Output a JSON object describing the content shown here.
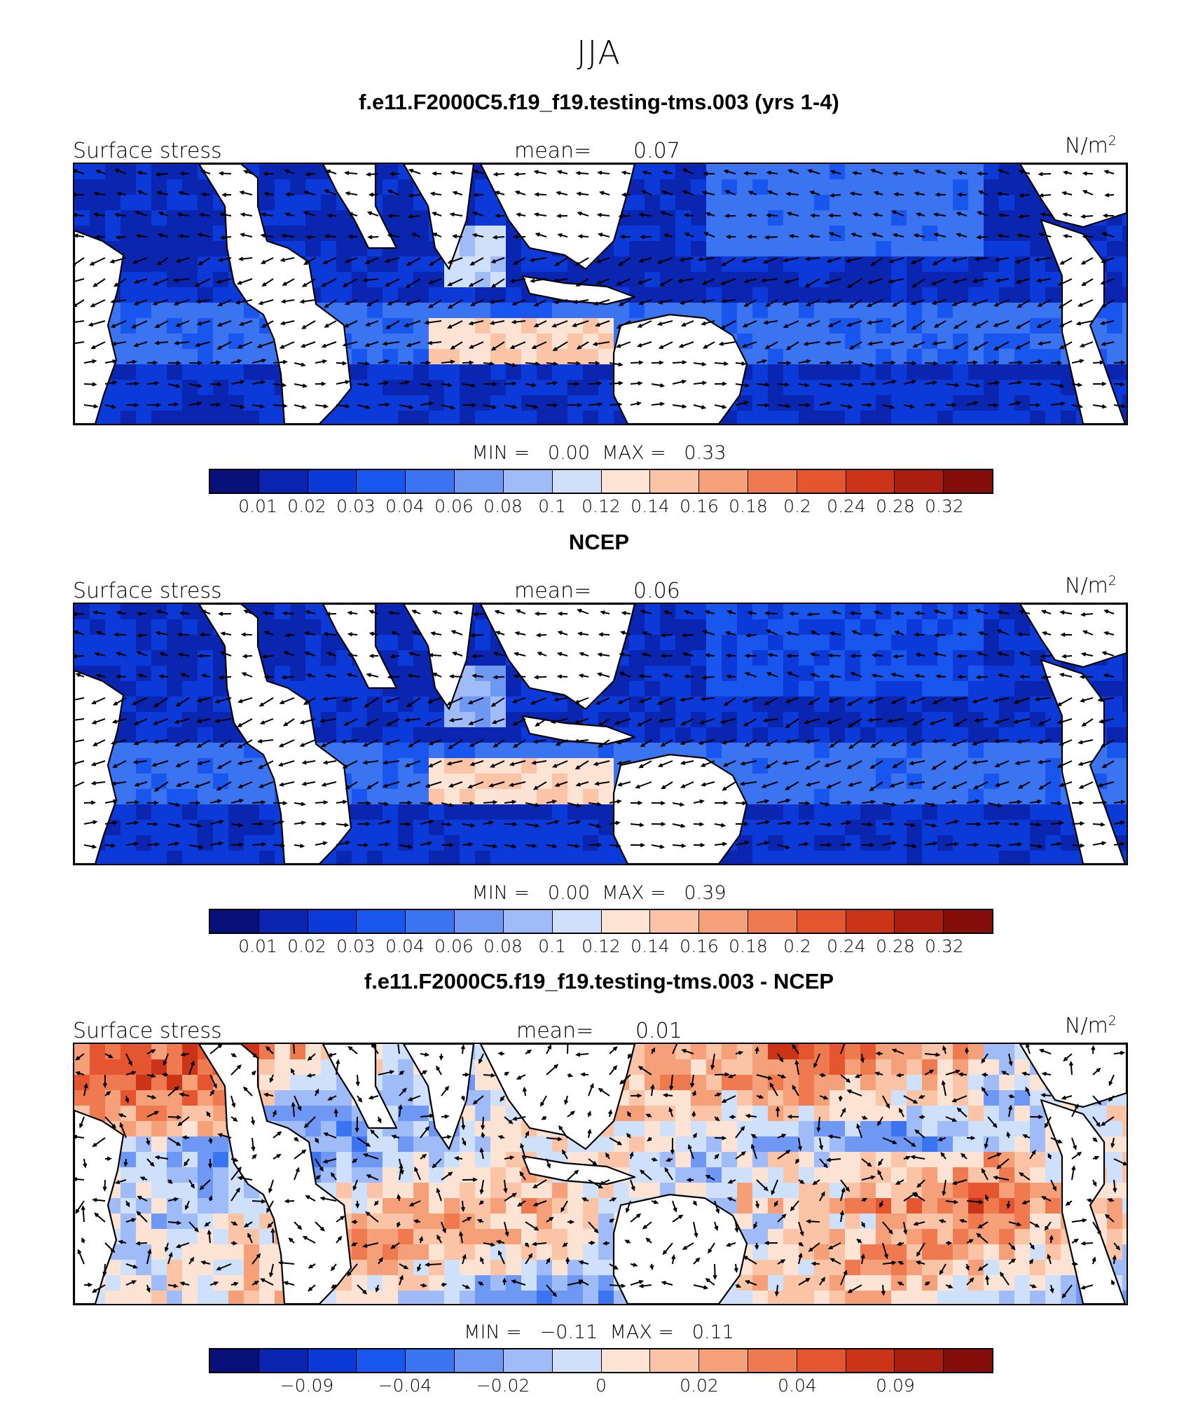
{
  "season": "JJA",
  "colormap": [
    "#08107a",
    "#0a25b0",
    "#0c3ad8",
    "#1856ee",
    "#3a74f0",
    "#6e98f4",
    "#a0bcf8",
    "#cfe0fb",
    "#fde3d3",
    "#fbc4a6",
    "#f6a07a",
    "#f07a50",
    "#e45530",
    "#cc3418",
    "#aa1e10",
    "#860e0a"
  ],
  "panels": [
    {
      "title": "f.e11.F2000C5.f19_f19.testing-tms.003 (yrs 1-4)",
      "variable": "Surface stress",
      "mean_label": "mean=",
      "mean": "0.07",
      "units": "N/m",
      "units_sup": "2",
      "min_label": "MIN =",
      "min": "0.00",
      "max_label": "MAX =",
      "max": "0.33",
      "tick_labels": [
        "0.01",
        "0.02",
        "0.03",
        "0.04",
        "0.06",
        "0.08",
        "0.1",
        "0.12",
        "0.14",
        "0.16",
        "0.18",
        "0.2",
        "0.24",
        "0.28",
        "0.32"
      ]
    },
    {
      "title": "NCEP",
      "variable": "Surface stress",
      "mean_label": "mean=",
      "mean": "0.06",
      "units": "N/m",
      "units_sup": "2",
      "min_label": "MIN =",
      "min": "0.00",
      "max_label": "MAX =",
      "max": "0.39",
      "tick_labels": [
        "0.01",
        "0.02",
        "0.03",
        "0.04",
        "0.06",
        "0.08",
        "0.1",
        "0.12",
        "0.14",
        "0.16",
        "0.18",
        "0.2",
        "0.24",
        "0.28",
        "0.32"
      ]
    },
    {
      "title": "f.e11.F2000C5.f19_f19.testing-tms.003 - NCEP",
      "variable": "Surface stress",
      "mean_label": "mean=",
      "mean": "0.01",
      "units": "N/m",
      "units_sup": "2",
      "min_label": "MIN =",
      "min": "−0.11",
      "max_label": "MAX =",
      "max": "0.11",
      "tick_labels": [
        "−0.09",
        "−0.04",
        "−0.02",
        "0",
        "0.02",
        "0.04",
        "0.09"
      ]
    }
  ]
}
